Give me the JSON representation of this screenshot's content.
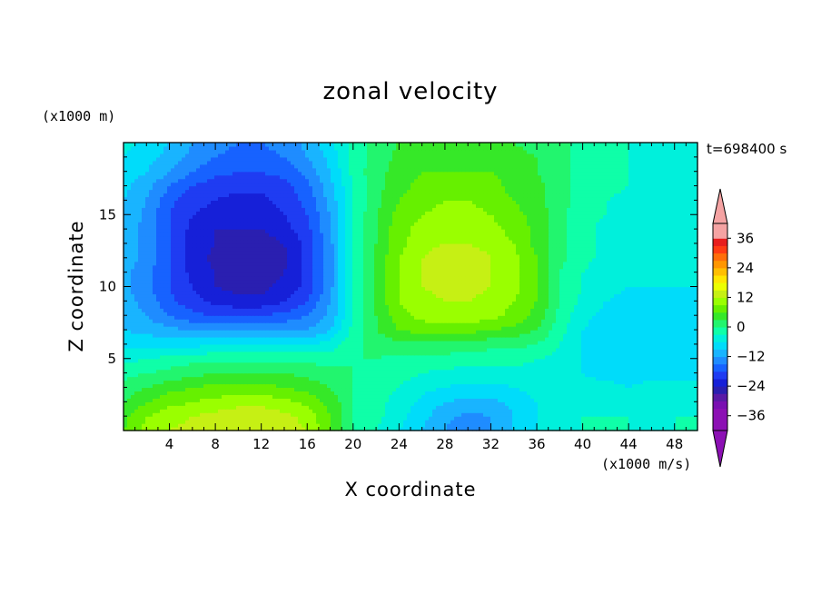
{
  "chart_data": {
    "type": "heatmap",
    "title": "zonal velocity",
    "xlabel": "X coordinate",
    "ylabel": "Z coordinate",
    "x_unit": "(x1000 m/s)",
    "y_unit": "(x1000 m)",
    "time_label": "t=698400 s",
    "xlim": [
      0,
      50
    ],
    "ylim": [
      0,
      20
    ],
    "x_ticks": [
      4,
      8,
      12,
      16,
      20,
      24,
      28,
      32,
      36,
      40,
      44,
      48
    ],
    "y_ticks": [
      5,
      10,
      15
    ],
    "colorbar": {
      "levels": [
        -42,
        -39,
        -36,
        -33,
        -30,
        -27,
        -24,
        -21,
        -18,
        -15,
        -12,
        -9,
        -6,
        -3,
        0,
        3,
        6,
        9,
        12,
        15,
        18,
        21,
        24,
        27,
        30,
        33,
        36,
        39,
        42
      ],
      "labeled_levels": [
        -36,
        -24,
        -12,
        0,
        12,
        24,
        36
      ],
      "colors": [
        "#7a0fb2",
        "#5a1aa6",
        "#2a1fb0",
        "#1620d8",
        "#1f3cf2",
        "#1762ff",
        "#1f8cff",
        "#19b4ff",
        "#00dcfa",
        "#00f0dc",
        "#0fffa8",
        "#22f56e",
        "#36e828",
        "#66f000",
        "#9aff00",
        "#c6f014",
        "#ecff00",
        "#ffe600",
        "#ffbe00",
        "#ff9600",
        "#ff6e0a",
        "#ff3c14",
        "#e81e1e"
      ],
      "under_color": "#8c10b4",
      "over_color": "#f5a3a3"
    },
    "grid_x": [
      0,
      2,
      4,
      6,
      8,
      10,
      12,
      14,
      16,
      18,
      20,
      22,
      24,
      26,
      28,
      30,
      32,
      34,
      36,
      38,
      40,
      42,
      44,
      46,
      48,
      50
    ],
    "grid_y": [
      0,
      1,
      2,
      3,
      4,
      5,
      6,
      7,
      8,
      9,
      10,
      11,
      12,
      13,
      14,
      15,
      16,
      17,
      18,
      19,
      20
    ],
    "values": [
      [
        6,
        10,
        12,
        13,
        14,
        15,
        14,
        13,
        12,
        6,
        0,
        -3,
        -6,
        -9,
        -12,
        -15,
        -12,
        -9,
        -6,
        -4,
        -3,
        -3,
        -3,
        -3,
        -3,
        -3
      ],
      [
        5,
        9,
        11,
        12,
        13,
        14,
        14,
        13,
        11,
        6,
        0,
        -2,
        -5,
        -8,
        -11,
        -13,
        -12,
        -9,
        -6,
        -4,
        -3,
        -3,
        -3,
        -4,
        -3,
        -3
      ],
      [
        3,
        6,
        8,
        9,
        10,
        11,
        11,
        10,
        8,
        5,
        0,
        -2,
        -4,
        -7,
        -9,
        -10,
        -10,
        -8,
        -6,
        -5,
        -4,
        -4,
        -5,
        -4,
        -4,
        -4
      ],
      [
        1,
        3,
        5,
        6,
        7,
        7,
        7,
        6,
        5,
        3,
        0,
        -2,
        -3,
        -5,
        -6,
        -7,
        -7,
        -6,
        -5,
        -5,
        -5,
        -5,
        -6,
        -5,
        -5,
        -5
      ],
      [
        -1,
        0,
        1,
        2,
        3,
        3,
        3,
        3,
        2,
        1,
        0,
        -1,
        -2,
        -3,
        -4,
        -4,
        -4,
        -4,
        -4,
        -5,
        -6,
        -7,
        -7,
        -7,
        -7,
        -7
      ],
      [
        -4,
        -3,
        -2,
        -1,
        -1,
        -1,
        -1,
        -1,
        -1,
        -1,
        0,
        0,
        -1,
        -1,
        -1,
        -2,
        -2,
        -2,
        -3,
        -4,
        -6,
        -8,
        -8,
        -8,
        -7,
        -7
      ],
      [
        -7,
        -7,
        -7,
        -7,
        -6,
        -6,
        -6,
        -6,
        -6,
        -5,
        -1,
        1,
        2,
        2,
        2,
        2,
        1,
        1,
        0,
        -3,
        -6,
        -8,
        -9,
        -9,
        -9,
        -8
      ],
      [
        -9,
        -10,
        -11,
        -12,
        -12,
        -12,
        -12,
        -12,
        -12,
        -9,
        -2,
        3,
        6,
        7,
        7,
        7,
        6,
        5,
        3,
        -2,
        -6,
        -8,
        -9,
        -9,
        -9,
        -8
      ],
      [
        -10,
        -12,
        -15,
        -17,
        -18,
        -18,
        -18,
        -17,
        -15,
        -11,
        -3,
        3,
        8,
        10,
        11,
        11,
        10,
        8,
        5,
        -1,
        -5,
        -7,
        -8,
        -8,
        -8,
        -8
      ],
      [
        -11,
        -13,
        -17,
        -20,
        -22,
        -23,
        -23,
        -21,
        -18,
        -12,
        -3,
        4,
        9,
        11,
        12,
        12,
        11,
        9,
        6,
        0,
        -4,
        -6,
        -7,
        -7,
        -7,
        -7
      ],
      [
        -11,
        -14,
        -18,
        -21,
        -24,
        -25,
        -25,
        -23,
        -20,
        -13,
        -3,
        4,
        9,
        12,
        13,
        13,
        12,
        10,
        6,
        0,
        -3,
        -5,
        -6,
        -6,
        -6,
        -6
      ],
      [
        -11,
        -14,
        -18,
        -22,
        -24,
        -26,
        -26,
        -24,
        -20,
        -13,
        -3,
        4,
        9,
        12,
        14,
        14,
        12,
        10,
        6,
        0,
        -3,
        -5,
        -5,
        -5,
        -5,
        -5
      ],
      [
        -10,
        -13,
        -18,
        -22,
        -25,
        -27,
        -27,
        -25,
        -20,
        -13,
        -3,
        4,
        9,
        12,
        14,
        14,
        12,
        10,
        6,
        1,
        -2,
        -4,
        -4,
        -4,
        -4,
        -4
      ],
      [
        -10,
        -13,
        -18,
        -22,
        -24,
        -26,
        -26,
        -24,
        -20,
        -13,
        -3,
        3,
        8,
        11,
        12,
        12,
        11,
        9,
        5,
        1,
        -2,
        -4,
        -4,
        -4,
        -4,
        -4
      ],
      [
        -10,
        -13,
        -18,
        -22,
        -24,
        -24,
        -24,
        -22,
        -19,
        -12,
        -3,
        3,
        8,
        10,
        11,
        11,
        10,
        8,
        5,
        1,
        -2,
        -4,
        -4,
        -4,
        -4,
        -4
      ],
      [
        -9,
        -13,
        -18,
        -21,
        -22,
        -23,
        -23,
        -21,
        -18,
        -12,
        -3,
        3,
        7,
        9,
        10,
        10,
        9,
        7,
        5,
        1,
        -2,
        -3,
        -4,
        -4,
        -4,
        -4
      ],
      [
        -9,
        -12,
        -17,
        -20,
        -21,
        -22,
        -22,
        -20,
        -17,
        -11,
        -3,
        2,
        6,
        8,
        9,
        9,
        8,
        6,
        4,
        1,
        -1,
        -3,
        -4,
        -4,
        -4,
        -4
      ],
      [
        -8,
        -11,
        -15,
        -18,
        -20,
        -20,
        -20,
        -19,
        -16,
        -10,
        -3,
        2,
        5,
        7,
        8,
        8,
        7,
        5,
        4,
        1,
        -1,
        -2,
        -3,
        -4,
        -4,
        -4
      ],
      [
        -7,
        -9,
        -12,
        -15,
        -17,
        -18,
        -18,
        -17,
        -14,
        -9,
        -2,
        2,
        4,
        6,
        6,
        6,
        6,
        5,
        3,
        1,
        -1,
        -2,
        -3,
        -4,
        -4,
        -4
      ],
      [
        -6,
        -8,
        -10,
        -13,
        -15,
        -16,
        -16,
        -15,
        -12,
        -8,
        -2,
        1,
        4,
        5,
        5,
        5,
        5,
        4,
        3,
        1,
        -1,
        -2,
        -3,
        -4,
        -4,
        -4
      ],
      [
        -5,
        -7,
        -9,
        -12,
        -14,
        -15,
        -15,
        -14,
        -11,
        -7,
        -2,
        1,
        3,
        4,
        4,
        4,
        4,
        3,
        2,
        1,
        -1,
        -2,
        -3,
        -3,
        -3,
        -3
      ]
    ]
  }
}
